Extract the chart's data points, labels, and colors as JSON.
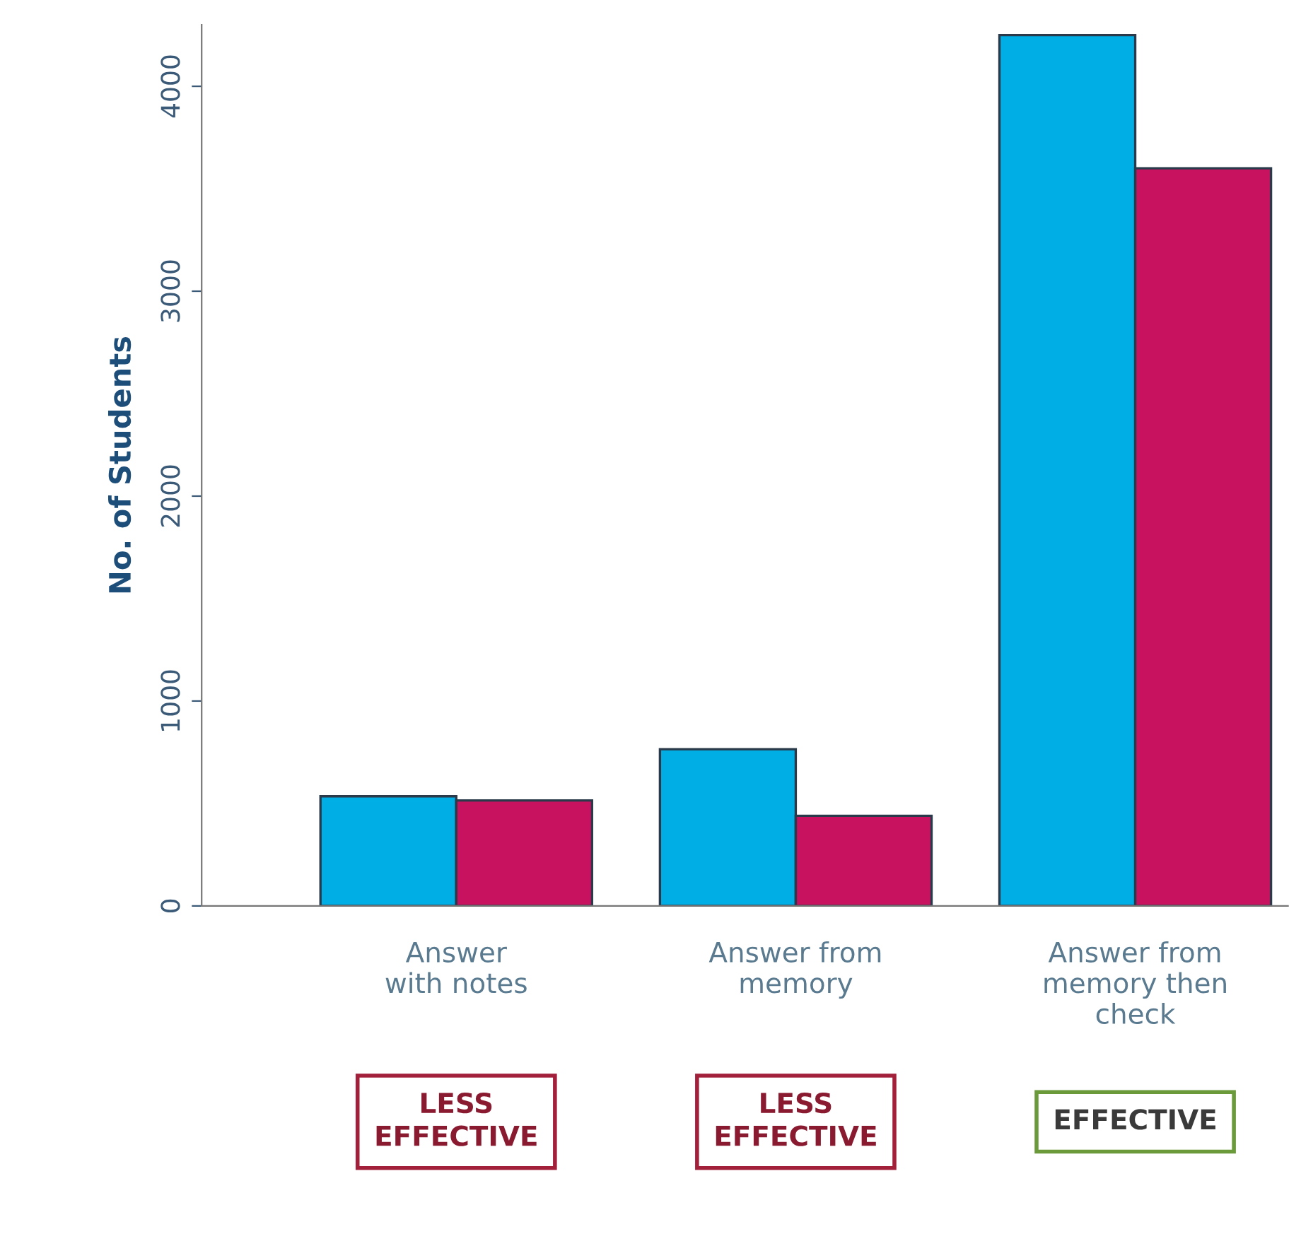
{
  "chart_data": {
    "type": "bar",
    "ylabel": "No. of Students",
    "categories": [
      "Answer\nwith notes",
      "Answer from\nmemory",
      "Answer from\nmemory then\ncheck"
    ],
    "series": [
      {
        "color": "#00aee6",
        "values": [
          535,
          765,
          4250
        ]
      },
      {
        "color": "#c8125f",
        "values": [
          515,
          440,
          3600
        ]
      }
    ],
    "ylim": [
      0,
      4300
    ],
    "yticks": [
      0,
      1000,
      2000,
      3000,
      4000
    ],
    "grid": false,
    "legend": false,
    "annotations": [
      "LESS\nEFFECTIVE",
      "LESS\nEFFECTIVE",
      "EFFECTIVE"
    ]
  }
}
